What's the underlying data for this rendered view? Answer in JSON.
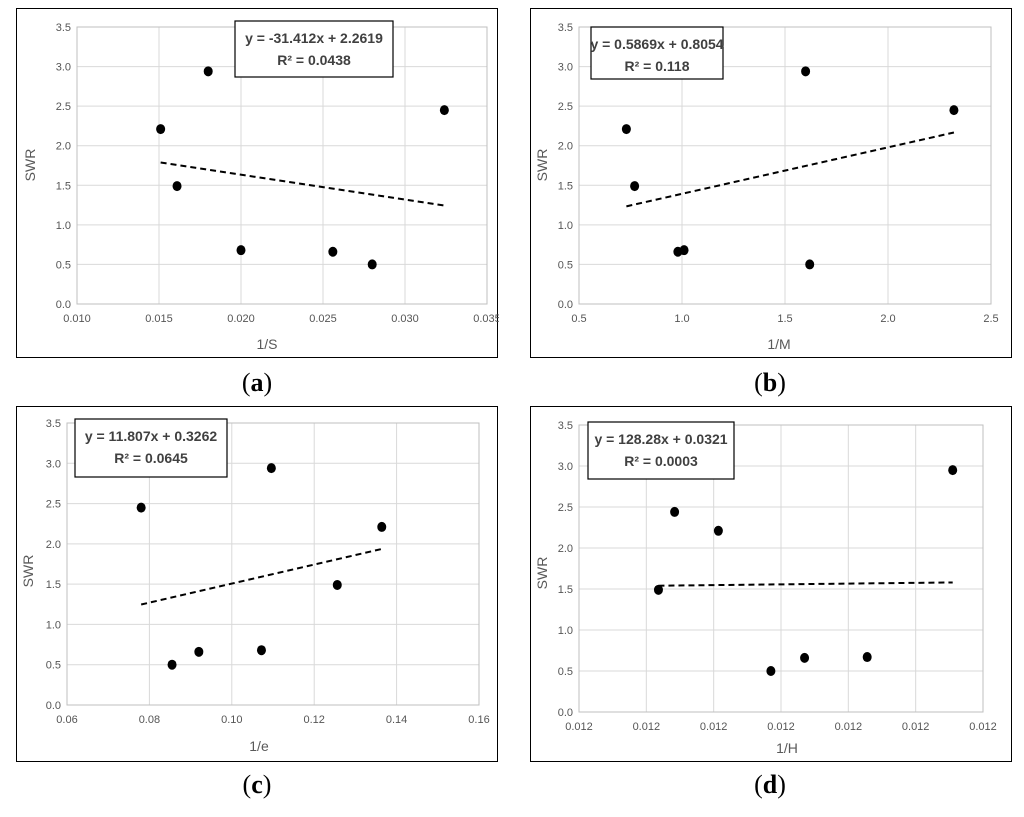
{
  "chart_data": [
    {
      "type": "scatter",
      "panel_label": "a",
      "xlabel": "1/S",
      "ylabel": "SWR",
      "xlim": [
        0.01,
        0.035
      ],
      "ylim": [
        0.0,
        3.5
      ],
      "x_ticks": [
        "0.010",
        "0.015",
        "0.020",
        "0.025",
        "0.030",
        "0.035"
      ],
      "y_ticks": [
        "0.0",
        "0.5",
        "1.0",
        "1.5",
        "2.0",
        "2.5",
        "3.0",
        "3.5"
      ],
      "points": [
        {
          "x": 0.0151,
          "y": 2.21
        },
        {
          "x": 0.0161,
          "y": 1.49
        },
        {
          "x": 0.018,
          "y": 2.94
        },
        {
          "x": 0.02,
          "y": 0.68
        },
        {
          "x": 0.0256,
          "y": 0.66
        },
        {
          "x": 0.028,
          "y": 0.5
        },
        {
          "x": 0.0324,
          "y": 2.45
        }
      ],
      "trendline": {
        "x_start": 0.0151,
        "x_end": 0.0324,
        "slope": -31.412,
        "intercept": 2.2619
      },
      "equation": "y = -31.412x + 2.2619",
      "r_squared": "R² = 0.0438",
      "grid": true
    },
    {
      "type": "scatter",
      "panel_label": "b",
      "xlabel": "1/M",
      "ylabel": "SWR",
      "xlim": [
        0.5,
        2.5
      ],
      "ylim": [
        0.0,
        3.5
      ],
      "x_ticks": [
        "0.5",
        "1.0",
        "1.5",
        "2.0",
        "2.5"
      ],
      "y_ticks": [
        "0.0",
        "0.5",
        "1.0",
        "1.5",
        "2.0",
        "2.5",
        "3.0",
        "3.5"
      ],
      "points": [
        {
          "x": 0.73,
          "y": 2.21
        },
        {
          "x": 0.77,
          "y": 1.49
        },
        {
          "x": 0.98,
          "y": 0.66
        },
        {
          "x": 1.01,
          "y": 0.68
        },
        {
          "x": 1.6,
          "y": 2.94
        },
        {
          "x": 1.62,
          "y": 0.5
        },
        {
          "x": 2.32,
          "y": 2.45
        }
      ],
      "trendline": {
        "x_start": 0.73,
        "x_end": 2.32,
        "slope": 0.5869,
        "intercept": 0.8054
      },
      "equation": "y = 0.5869x + 0.8054",
      "r_squared": "R² = 0.118",
      "grid": true
    },
    {
      "type": "scatter",
      "panel_label": "c",
      "xlabel": "1/e",
      "ylabel": "SWR",
      "xlim": [
        0.06,
        0.16
      ],
      "ylim": [
        0.0,
        3.5
      ],
      "x_ticks": [
        "0.06",
        "0.08",
        "0.10",
        "0.12",
        "0.14",
        "0.16"
      ],
      "y_ticks": [
        "0.0",
        "0.5",
        "1.0",
        "1.5",
        "2.0",
        "2.5",
        "3.0",
        "3.5"
      ],
      "points": [
        {
          "x": 0.078,
          "y": 2.45
        },
        {
          "x": 0.0855,
          "y": 0.5
        },
        {
          "x": 0.092,
          "y": 0.66
        },
        {
          "x": 0.1072,
          "y": 0.68
        },
        {
          "x": 0.1096,
          "y": 2.94
        },
        {
          "x": 0.1256,
          "y": 1.49
        },
        {
          "x": 0.1364,
          "y": 2.21
        }
      ],
      "trendline": {
        "x_start": 0.078,
        "x_end": 0.1364,
        "slope": 11.807,
        "intercept": 0.3262
      },
      "equation": "y = 11.807x + 0.3262",
      "r_squared": "R² = 0.0645",
      "grid": true
    },
    {
      "type": "scatter",
      "panel_label": "d",
      "xlabel": "1/H",
      "ylabel": "SWR",
      "xlim": [
        0.0,
        6.0
      ],
      "ylim": [
        0.0,
        3.5
      ],
      "x_ticks": [
        "0.012",
        "0.012",
        "0.012",
        "0.012",
        "0.012",
        "0.012",
        "0.012"
      ],
      "y_ticks": [
        "0.0",
        "0.5",
        "1.0",
        "1.5",
        "2.0",
        "2.5",
        "3.0",
        "3.5"
      ],
      "points": [
        {
          "x": 1.18,
          "y": 1.49
        },
        {
          "x": 1.42,
          "y": 2.44
        },
        {
          "x": 2.07,
          "y": 2.21
        },
        {
          "x": 2.85,
          "y": 0.5
        },
        {
          "x": 3.35,
          "y": 0.66
        },
        {
          "x": 4.28,
          "y": 0.67
        },
        {
          "x": 5.55,
          "y": 2.95
        }
      ],
      "trendline": {
        "x_start": 1.18,
        "x_end": 5.55,
        "y_start": 1.54,
        "y_end": 1.58
      },
      "equation": "y = 128.28x + 0.0321",
      "r_squared": "R² = 0.0003",
      "grid": true
    }
  ]
}
